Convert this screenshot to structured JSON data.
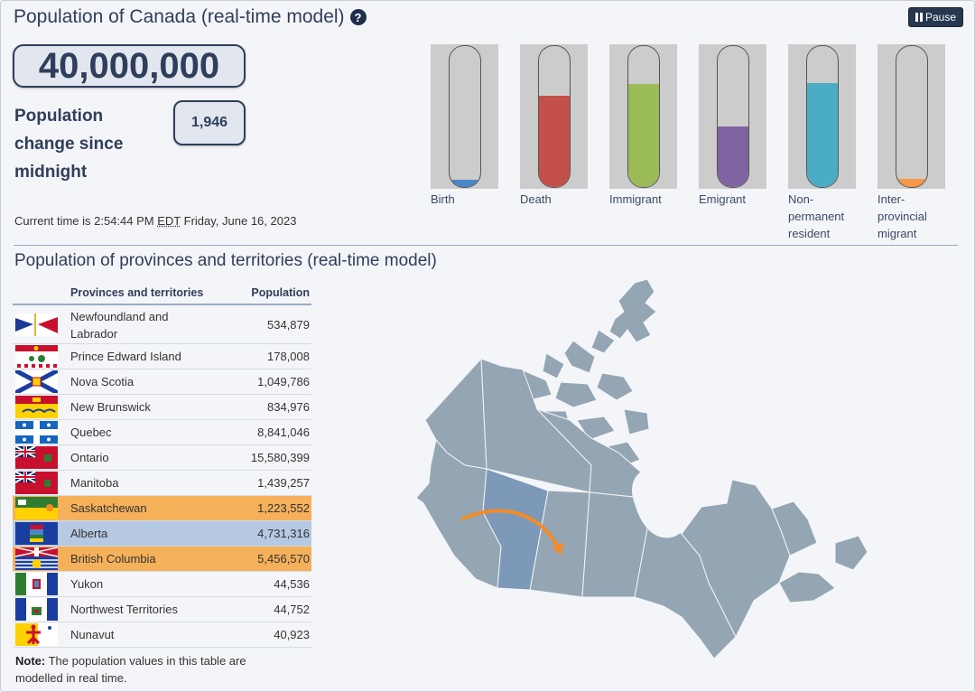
{
  "header": {
    "title": "Population of Canada (real-time model)",
    "pause_label": "Pause"
  },
  "counter": {
    "population": "40,000,000",
    "change_label": "Population change since midnight",
    "change_value": "1,946"
  },
  "time": {
    "prefix": "Current time is 2:54:44 PM",
    "tz": "EDT",
    "tz_title": "Eastern Daylight Time",
    "date": "Friday, June 16, 2023"
  },
  "tubes": [
    {
      "label": "Birth",
      "color": "#4a86c8",
      "level": 0.05
    },
    {
      "label": "Death",
      "color": "#c4504b",
      "level": 0.65
    },
    {
      "label": "Immigrant",
      "color": "#9bbb59",
      "level": 0.73
    },
    {
      "label": "Emigrant",
      "color": "#8064a2",
      "level": 0.43
    },
    {
      "label": "Non-permanent resident",
      "color": "#4bacc6",
      "level": 0.74
    },
    {
      "label": "Inter-provincial migrant",
      "color": "#f79646",
      "level": 0.06
    }
  ],
  "section2": {
    "title": "Population of provinces and territories (real-time model)",
    "col_name": "Provinces and territories",
    "col_pop": "Population"
  },
  "provinces": [
    {
      "name": "Newfoundland and Labrador",
      "pop": "534,879",
      "flag": "nl-flag-icon"
    },
    {
      "name": "Prince Edward Island",
      "pop": "178,008",
      "flag": "pei-flag-icon"
    },
    {
      "name": "Nova Scotia",
      "pop": "1,049,786",
      "flag": "ns-flag-icon"
    },
    {
      "name": "New Brunswick",
      "pop": "834,976",
      "flag": "nb-flag-icon"
    },
    {
      "name": "Quebec",
      "pop": "8,841,046",
      "flag": "qc-flag-icon"
    },
    {
      "name": "Ontario",
      "pop": "15,580,399",
      "flag": "on-flag-icon"
    },
    {
      "name": "Manitoba",
      "pop": "1,439,257",
      "flag": "mb-flag-icon"
    },
    {
      "name": "Saskatchewan",
      "pop": "1,223,552",
      "flag": "sk-flag-icon",
      "highlight": "orange"
    },
    {
      "name": "Alberta",
      "pop": "4,731,316",
      "flag": "ab-flag-icon",
      "highlight": "blue"
    },
    {
      "name": "British Columbia",
      "pop": "5,456,570",
      "flag": "bc-flag-icon",
      "highlight": "orange"
    },
    {
      "name": "Yukon",
      "pop": "44,536",
      "flag": "yt-flag-icon"
    },
    {
      "name": "Northwest Territories",
      "pop": "44,752",
      "flag": "nt-flag-icon"
    },
    {
      "name": "Nunavut",
      "pop": "40,923",
      "flag": "nu-flag-icon"
    }
  ],
  "note": {
    "bold": "Note:",
    "text": " The population values in this table are modelled in real time."
  },
  "map": {
    "name": "canada-map",
    "base_color": "#94a5b4",
    "highlight_color": "#7d99b8",
    "arrow_color": "#f28c28"
  }
}
